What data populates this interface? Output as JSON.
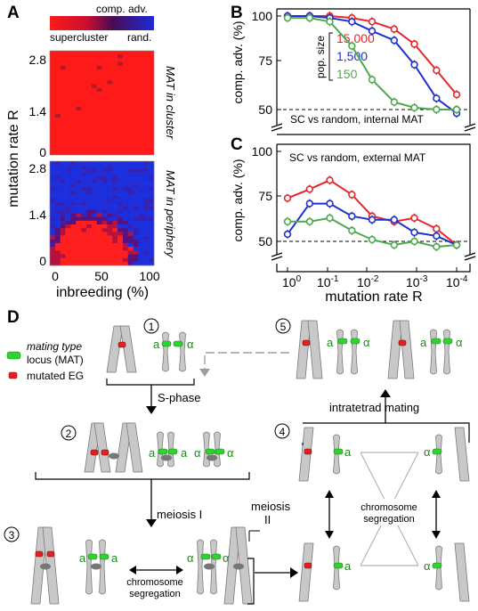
{
  "panel_labels": {
    "a": "A",
    "b": "B",
    "c": "C",
    "d": "D"
  },
  "colors": {
    "red": "#e8252a",
    "blue": "#1f2fd0",
    "green": "#4ca94c",
    "chrom": "#c8c8c8",
    "mat": "#2fd32f",
    "eg": "#e3201f",
    "gray_line": "#a8a8a8"
  },
  "chart_data": [
    {
      "panel": "A-top",
      "type": "heatmap",
      "title": "comp. adv.",
      "colorbar_left": "supercluster",
      "colorbar_right": "rand.",
      "ylabel": "mutation rate R",
      "side_label": "MAT in cluster",
      "y_ticks": [
        "0",
        "1.4",
        "2.8"
      ],
      "ylim": [
        0,
        2.8
      ],
      "xlim": [
        0,
        100
      ],
      "note": "nearly uniform supercluster advantage (red)"
    },
    {
      "panel": "A-bottom",
      "type": "heatmap",
      "ylabel": "mutation rate R",
      "xlabel": "inbreeding (%)",
      "side_label": "MAT in periphery",
      "x_ticks": [
        "0",
        "50",
        "100"
      ],
      "y_ticks": [
        "0",
        "1.4",
        "2.8"
      ],
      "ylim": [
        0,
        2.8
      ],
      "xlim": [
        0,
        100
      ],
      "note": "red region concentrated at low R and intermediate inbreeding, blue elsewhere"
    },
    {
      "panel": "B",
      "type": "line",
      "annotation": "SC vs random, internal MAT",
      "ylabel": "comp. adv. (%)",
      "y_ticks": [
        "50",
        "75",
        "100"
      ],
      "ylim": [
        50,
        100
      ],
      "x_ticks": [
        "10^0",
        "10^-1",
        "10^-2",
        "10^-3",
        "10^-4"
      ],
      "legend_title": "pop. size",
      "x": [
        1,
        0.3,
        0.1,
        0.03,
        0.01,
        0.003,
        0.001,
        0.0003,
        0.0001
      ],
      "series": [
        {
          "name": "15,000",
          "color": "#e8252a",
          "values": [
            100,
            100,
            100,
            99,
            97,
            93,
            85,
            71,
            58
          ]
        },
        {
          "name": "1,500",
          "color": "#1f2fd0",
          "values": [
            100,
            100,
            99,
            97,
            92,
            87,
            74,
            56,
            48
          ]
        },
        {
          "name": "150",
          "color": "#4ca94c",
          "values": [
            99,
            99,
            97,
            84,
            66,
            54,
            51,
            50,
            50
          ]
        }
      ]
    },
    {
      "panel": "C",
      "type": "line",
      "annotation": "SC vs random, external MAT",
      "ylabel": "comp. adv. (%)",
      "xlabel": "mutation rate R",
      "y_ticks": [
        "50",
        "75",
        "100"
      ],
      "ylim": [
        50,
        100
      ],
      "x_ticks": [
        "10^0",
        "10^-1",
        "10^-2",
        "10^-3",
        "10^-4"
      ],
      "x": [
        1,
        0.3,
        0.1,
        0.03,
        0.01,
        0.003,
        0.001,
        0.0003,
        0.0001
      ],
      "series": [
        {
          "color": "#e8252a",
          "values": [
            74,
            79,
            84,
            76,
            64,
            61,
            63,
            57,
            48
          ]
        },
        {
          "color": "#1f2fd0",
          "values": [
            54,
            71,
            71,
            64,
            62,
            62,
            55,
            53,
            48
          ]
        },
        {
          "color": "#4ca94c",
          "values": [
            61,
            61,
            63,
            56,
            51,
            48,
            50,
            47,
            48
          ]
        }
      ]
    }
  ],
  "panel_b_text": {
    "annotation": "SC vs random, internal MAT",
    "ylabel": "comp. adv. (%)",
    "legend_title": "pop. size"
  },
  "panel_c_text": {
    "annotation": "SC vs random, external MAT",
    "ylabel": "comp. adv. (%)",
    "xlabel": "mutation rate R"
  },
  "diagram": {
    "legend_mat": "mating type locus (MAT)",
    "legend_mat_line1": "mating type",
    "legend_mat_line2": "locus (MAT)",
    "legend_eg": "mutated EG",
    "steps": [
      "1",
      "2",
      "3",
      "4",
      "5"
    ],
    "s_phase": "S-phase",
    "meiosis1": "meiosis I",
    "meiosis2_a": "meiosis",
    "meiosis2_b": "II",
    "intratetrad": "intratetrad mating",
    "segregation_a": "chromosome",
    "segregation_b": "segregation",
    "a": "a",
    "alpha": "α"
  }
}
